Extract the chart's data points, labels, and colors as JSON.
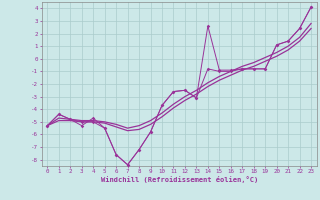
{
  "xlabel": "Windchill (Refroidissement éolien,°C)",
  "hours": [
    0,
    1,
    2,
    3,
    4,
    5,
    6,
    7,
    8,
    9,
    10,
    11,
    12,
    13,
    14,
    15,
    16,
    17,
    18,
    19,
    20,
    21,
    22,
    23
  ],
  "line_jagged1": [
    -5.3,
    -4.4,
    -4.8,
    -5.3,
    -4.7,
    -5.5,
    -7.6,
    -8.4,
    -7.2,
    -5.8,
    -3.7,
    -2.6,
    -2.5,
    -3.1,
    2.6,
    -0.9,
    -0.9,
    -0.8,
    -0.8,
    -0.8,
    1.1,
    1.4,
    2.4,
    4.1
  ],
  "line_jagged2": [
    -5.3,
    -4.4,
    -4.8,
    -5.0,
    -5.0,
    -5.5,
    -7.6,
    -8.4,
    -7.2,
    -5.8,
    -3.7,
    -2.6,
    -2.5,
    -3.1,
    -0.8,
    -1.0,
    -1.0,
    -0.8,
    -0.8,
    -0.8,
    1.1,
    1.4,
    2.4,
    4.1
  ],
  "line_smooth1": [
    -5.3,
    -4.9,
    -4.9,
    -5.0,
    -5.0,
    -5.1,
    -5.4,
    -5.7,
    -5.6,
    -5.2,
    -4.6,
    -3.9,
    -3.3,
    -2.8,
    -2.2,
    -1.7,
    -1.3,
    -0.9,
    -0.6,
    -0.2,
    0.2,
    0.7,
    1.4,
    2.4
  ],
  "line_smooth2": [
    -5.3,
    -4.7,
    -4.8,
    -4.9,
    -4.9,
    -5.0,
    -5.2,
    -5.5,
    -5.3,
    -4.9,
    -4.3,
    -3.6,
    -3.0,
    -2.5,
    -1.9,
    -1.4,
    -1.0,
    -0.6,
    -0.3,
    0.1,
    0.5,
    1.0,
    1.7,
    2.8
  ],
  "bg_color": "#cce8e8",
  "grid_color": "#aacccc",
  "line_color": "#993399",
  "ylim": [
    -8.5,
    4.5
  ],
  "xlim": [
    -0.5,
    23.5
  ],
  "yticks": [
    4,
    3,
    2,
    1,
    0,
    -1,
    -2,
    -3,
    -4,
    -5,
    -6,
    -7,
    -8
  ],
  "xticks": [
    0,
    1,
    2,
    3,
    4,
    5,
    6,
    7,
    8,
    9,
    10,
    11,
    12,
    13,
    14,
    15,
    16,
    17,
    18,
    19,
    20,
    21,
    22,
    23
  ]
}
